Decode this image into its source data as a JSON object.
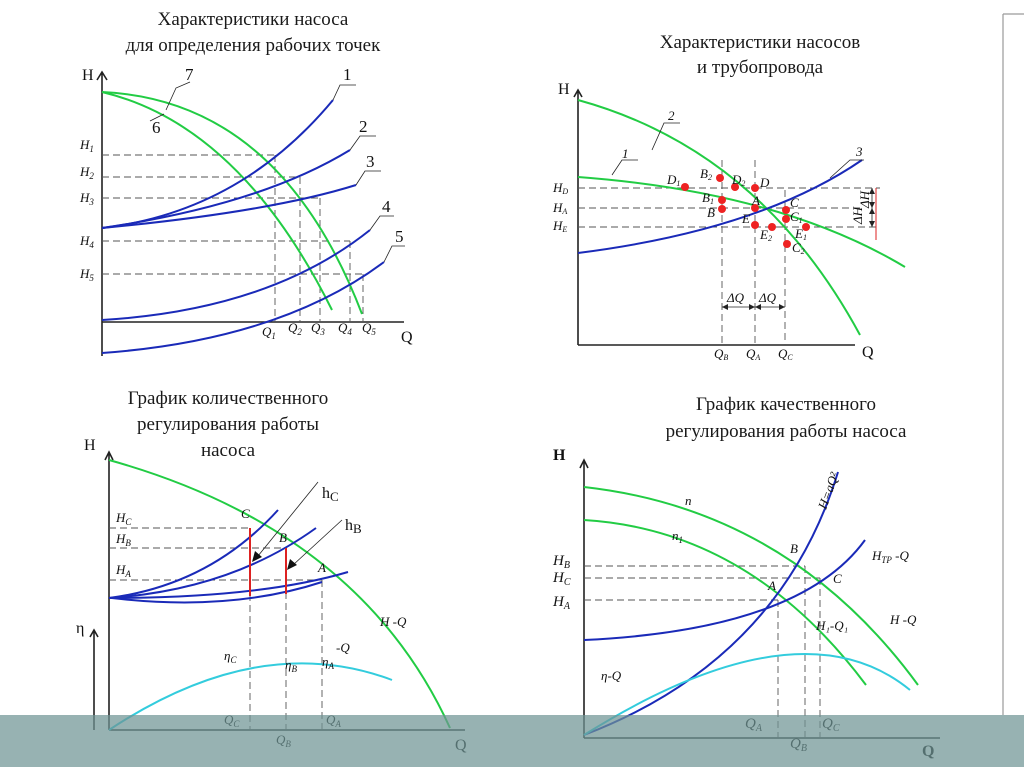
{
  "colors": {
    "pump_curve": "#22cc44",
    "system_curve": "#1a2ab8",
    "efficiency_curve": "#33ccdd",
    "marker": "#ee2222",
    "footer_band": "#6f9494"
  },
  "tl": {
    "title_line1": "Характеристики насоса",
    "title_line2": "для определения рабочих точек",
    "axis_h": "H",
    "axis_q": "Q",
    "curves": [
      "1",
      "2",
      "3",
      "4",
      "5",
      "6",
      "7"
    ],
    "h_ticks": [
      {
        "m": "H",
        "s": "1"
      },
      {
        "m": "H",
        "s": "2"
      },
      {
        "m": "H",
        "s": "3"
      },
      {
        "m": "H",
        "s": "4"
      },
      {
        "m": "H",
        "s": "5"
      }
    ],
    "q_ticks": [
      {
        "m": "Q",
        "s": "1"
      },
      {
        "m": "Q",
        "s": "2"
      },
      {
        "m": "Q",
        "s": "3"
      },
      {
        "m": "Q",
        "s": "4"
      },
      {
        "m": "Q",
        "s": "5"
      }
    ]
  },
  "tr": {
    "title_line1": "Характеристики насосов",
    "title_line2": "и трубопровода",
    "axis_h": "H",
    "axis_q": "Q",
    "curves": [
      "1",
      "2",
      "3"
    ],
    "h_ticks": [
      {
        "m": "H",
        "s": "D"
      },
      {
        "m": "H",
        "s": "A"
      },
      {
        "m": "H",
        "s": "E"
      }
    ],
    "q_ticks": [
      {
        "m": "Q",
        "s": "B"
      },
      {
        "m": "Q",
        "s": "A"
      },
      {
        "m": "Q",
        "s": "C"
      }
    ],
    "points": [
      {
        "m": "D",
        "s": "1"
      },
      {
        "m": "B",
        "s": "2"
      },
      {
        "m": "D",
        "s": "2"
      },
      {
        "m": "D",
        "s": ""
      },
      {
        "m": "B",
        "s": "1"
      },
      {
        "m": "A",
        "s": ""
      },
      {
        "m": "B",
        "s": ""
      },
      {
        "m": "C",
        "s": ""
      },
      {
        "m": "C",
        "s": "1"
      },
      {
        "m": "E",
        "s": ""
      },
      {
        "m": "E",
        "s": "1"
      },
      {
        "m": "E",
        "s": "2"
      },
      {
        "m": "C",
        "s": "2"
      }
    ],
    "delta_q": "ΔQ",
    "delta_h": "ΔH"
  },
  "bl": {
    "title_line1": "График количественного",
    "title_line2": "регулирования работы",
    "title_line3": "насоса",
    "axis_h": "H",
    "axis_q": "Q",
    "axis_eta": "η",
    "h_ticks": [
      {
        "m": "H",
        "s": "C"
      },
      {
        "m": "H",
        "s": "B"
      },
      {
        "m": "H",
        "s": "A"
      }
    ],
    "q_ticks": [
      {
        "m": "Q",
        "s": "C"
      },
      {
        "m": "Q",
        "s": "B"
      },
      {
        "m": "Q",
        "s": "A"
      }
    ],
    "points": [
      "C",
      "B",
      "A"
    ],
    "hc": {
      "m": "h",
      "s": "C"
    },
    "hb": {
      "m": "h",
      "s": "B"
    },
    "eta": [
      {
        "m": "η",
        "s": "C"
      },
      {
        "m": "η",
        "s": "B"
      },
      {
        "m": "η",
        "s": "A"
      }
    ],
    "eta_q": "-Q",
    "hq": "H -Q"
  },
  "br": {
    "title_line1": "График качественного",
    "title_line2": "регулирования работы насоса",
    "axis_h": "H",
    "axis_q": "Q",
    "h_ticks": [
      {
        "m": "H",
        "s": "B"
      },
      {
        "m": "H",
        "s": "C"
      },
      {
        "m": "H",
        "s": "A"
      }
    ],
    "q_ticks": [
      {
        "m": "Q",
        "s": "A"
      },
      {
        "m": "Q",
        "s": "B"
      },
      {
        "m": "Q",
        "s": "C"
      }
    ],
    "haq": "H=aQ²",
    "n": "n",
    "n1": {
      "m": "n",
      "s": "1"
    },
    "htp": {
      "m": "H",
      "s": "TP",
      "t": " -Q"
    },
    "h1q1": "H₁-Q₁",
    "hq": "H -Q",
    "etaq": "η-Q",
    "points": [
      "B",
      "A",
      "C"
    ]
  }
}
